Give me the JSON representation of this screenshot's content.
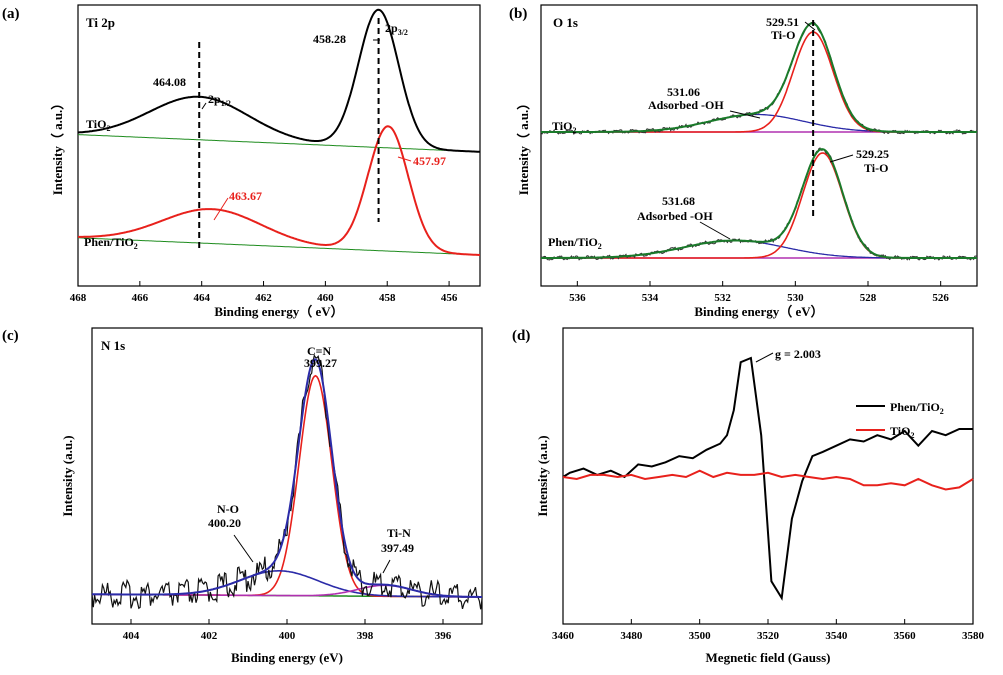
{
  "colors": {
    "black": "#000000",
    "red": "#e8211c",
    "green": "#1e8c1e",
    "blue": "#2b2ba8",
    "magenta": "#b030b0",
    "darkgreen": "#1a7a2a"
  },
  "chart_data": [
    {
      "id": "a",
      "type": "line",
      "panel_label": "(a)",
      "title": "Ti 2p",
      "xlabel": "Binding energy（ eV）",
      "ylabel": "Intensity（ a.u.）",
      "xlim": [
        468,
        455
      ],
      "x_reversed": true,
      "xticks": [
        "468",
        "466",
        "464",
        "462",
        "460",
        "458",
        "456"
      ],
      "series": [
        {
          "name": "TiO2",
          "color": "#000000",
          "peaks": [
            {
              "x": 464.08,
              "h": 0.2,
              "w": 1.6
            },
            {
              "x": 458.28,
              "h": 0.64,
              "w": 0.65
            }
          ],
          "base_left": 0.56,
          "base_right": 0.48
        },
        {
          "name": "Phen/TiO2",
          "color": "#e8211c",
          "peaks": [
            {
              "x": 463.67,
              "h": 0.16,
              "w": 1.6
            },
            {
              "x": 457.97,
              "h": 0.58,
              "w": 0.65
            }
          ],
          "base_left": 0.08,
          "base_right": 0.0
        }
      ],
      "annotations": [
        {
          "text": "464.08",
          "sub": "",
          "x": 464.08,
          "color": "#000000"
        },
        {
          "text": "2p",
          "sub": "1/2",
          "x": 464.08,
          "color": "#000000"
        },
        {
          "text": "458.28",
          "sub": "",
          "x": 458.28,
          "color": "#000000"
        },
        {
          "text": "2p",
          "sub": "3/2",
          "x": 458.28,
          "color": "#000000"
        },
        {
          "text": "463.67",
          "sub": "",
          "x": 463.67,
          "color": "#e8211c"
        },
        {
          "text": "457.97",
          "sub": "",
          "x": 457.97,
          "color": "#e8211c"
        }
      ],
      "series_labels": [
        {
          "text": "TiO",
          "sub": "2"
        },
        {
          "text": "Phen/TiO",
          "sub": "2"
        }
      ]
    },
    {
      "id": "b",
      "type": "line",
      "panel_label": "(b)",
      "title": "O 1s",
      "xlabel": "Binding energy（ eV）",
      "ylabel": "Intensity（ a.u.）",
      "xlim": [
        537,
        525
      ],
      "x_reversed": true,
      "xticks": [
        "536",
        "534",
        "532",
        "530",
        "528",
        "526"
      ],
      "series": [
        {
          "name": "TiO2",
          "color": "#000000",
          "offset": 0.55,
          "peaks": [
            {
              "x": 529.51,
              "h": 0.4,
              "w": 0.55,
              "label": "Ti-O"
            },
            {
              "x": 531.06,
              "h": 0.07,
              "w": 1.3,
              "label": "Adsorbed -OH"
            }
          ]
        },
        {
          "name": "Phen/TiO2",
          "color": "#000000",
          "offset": 0.0,
          "peaks": [
            {
              "x": 529.25,
              "h": 0.42,
              "w": 0.55,
              "label": "Ti-O"
            },
            {
              "x": 531.68,
              "h": 0.07,
              "w": 1.4,
              "label": "Adsorbed -OH"
            }
          ]
        }
      ],
      "annotations": [
        {
          "text": "529.51",
          "x": 529.51
        },
        {
          "text": "Ti-O",
          "x": 529.51
        },
        {
          "text": "531.06",
          "x": 531.06
        },
        {
          "text": "Adsorbed -OH",
          "x": 531.06
        },
        {
          "text": "529.25",
          "x": 529.25
        },
        {
          "text": "Ti-O",
          "x": 529.25
        },
        {
          "text": "531.68",
          "x": 531.68
        },
        {
          "text": "Adsorbed -OH",
          "x": 531.68
        }
      ],
      "series_labels": [
        {
          "text": "TiO",
          "sub": "2"
        },
        {
          "text": "Phen/TiO",
          "sub": "2"
        }
      ]
    },
    {
      "id": "c",
      "type": "line",
      "panel_label": "(c)",
      "title": "N 1s",
      "xlabel": "Binding energy (eV)",
      "ylabel": "Intensity (a.u.)",
      "xlim": [
        405,
        395
      ],
      "x_reversed": true,
      "xticks": [
        "404",
        "402",
        "400",
        "398",
        "396"
      ],
      "series": [
        {
          "name": "C=N",
          "x": 399.27,
          "h": 0.8,
          "w": 0.42,
          "color": "#e8211c"
        },
        {
          "name": "N-O",
          "x": 400.2,
          "h": 0.09,
          "w": 1.0,
          "color": "#2b2ba8"
        },
        {
          "name": "Ti-N",
          "x": 397.49,
          "h": 0.04,
          "w": 0.7,
          "color": "#b030b0"
        }
      ],
      "annotations": [
        {
          "text": "C=N",
          "x": 399.27
        },
        {
          "text": "399.27",
          "x": 399.27
        },
        {
          "text": "N-O",
          "x": 400.2
        },
        {
          "text": "400.20",
          "x": 400.2
        },
        {
          "text": "Ti-N",
          "x": 397.49
        },
        {
          "text": "397.49",
          "x": 397.49
        }
      ]
    },
    {
      "id": "d",
      "type": "line",
      "panel_label": "(d)",
      "xlabel": "Megnetic field (Gauss)",
      "ylabel": "Intensity (a.u.)",
      "xlim": [
        3460,
        3580
      ],
      "xticks": [
        "3460",
        "3480",
        "3500",
        "3520",
        "3540",
        "3560",
        "3580"
      ],
      "annotation": {
        "text": "g = 2.003",
        "x": 3515
      },
      "legend": {
        "position": "right",
        "entries": [
          {
            "text": "Phen/TiO",
            "sub": "2",
            "color": "#000000"
          },
          {
            "text": "TiO",
            "sub": "2",
            "color": "#e8211c"
          }
        ]
      },
      "series": [
        {
          "name": "Phen/TiO2",
          "color": "#000000",
          "x": [
            3460,
            3462,
            3466,
            3470,
            3474,
            3478,
            3482,
            3486,
            3490,
            3494,
            3498,
            3502,
            3506,
            3508,
            3510,
            3512,
            3515,
            3518,
            3521,
            3524,
            3527,
            3530,
            3533,
            3536,
            3540,
            3544,
            3548,
            3552,
            3556,
            3560,
            3564,
            3568,
            3572,
            3576,
            3580
          ],
          "y": [
            0.4,
            0.42,
            0.44,
            0.41,
            0.43,
            0.4,
            0.46,
            0.45,
            0.47,
            0.5,
            0.49,
            0.53,
            0.56,
            0.6,
            0.72,
            0.95,
            0.97,
            0.6,
            -0.1,
            -0.18,
            0.2,
            0.38,
            0.5,
            0.52,
            0.55,
            0.58,
            0.57,
            0.6,
            0.58,
            0.62,
            0.55,
            0.62,
            0.6,
            0.63,
            0.63
          ]
        },
        {
          "name": "TiO2",
          "color": "#e8211c",
          "x": [
            3460,
            3464,
            3468,
            3472,
            3476,
            3480,
            3484,
            3488,
            3492,
            3496,
            3500,
            3504,
            3508,
            3512,
            3516,
            3520,
            3524,
            3528,
            3532,
            3536,
            3540,
            3544,
            3548,
            3552,
            3556,
            3560,
            3564,
            3568,
            3572,
            3576,
            3580
          ],
          "y": [
            0.4,
            0.39,
            0.41,
            0.41,
            0.4,
            0.41,
            0.39,
            0.4,
            0.41,
            0.4,
            0.43,
            0.4,
            0.42,
            0.41,
            0.41,
            0.42,
            0.4,
            0.41,
            0.4,
            0.39,
            0.4,
            0.39,
            0.36,
            0.36,
            0.37,
            0.36,
            0.39,
            0.36,
            0.34,
            0.35,
            0.39
          ]
        }
      ]
    }
  ]
}
